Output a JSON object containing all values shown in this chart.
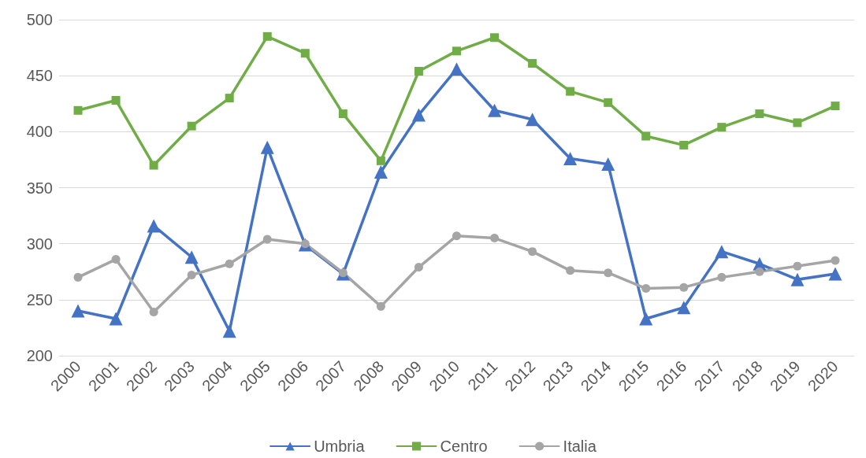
{
  "chart_data": {
    "type": "line",
    "categories": [
      "2000",
      "2001",
      "2002",
      "2003",
      "2004",
      "2005",
      "2006",
      "2007",
      "2008",
      "2009",
      "2010",
      "2011",
      "2012",
      "2013",
      "2014",
      "2015",
      "2016",
      "2017",
      "2018",
      "2019",
      "2020"
    ],
    "series": [
      {
        "name": "Umbria",
        "color": "#4472c4",
        "marker": "triangle",
        "values": [
          240,
          233,
          316,
          288,
          222,
          386,
          299,
          273,
          364,
          415,
          456,
          419,
          411,
          376,
          371,
          233,
          243,
          293,
          282,
          268,
          273
        ]
      },
      {
        "name": "Centro",
        "color": "#70ad47",
        "marker": "square",
        "values": [
          419,
          428,
          370,
          405,
          430,
          485,
          470,
          416,
          374,
          454,
          472,
          484,
          461,
          436,
          426,
          396,
          388,
          404,
          416,
          408,
          423
        ]
      },
      {
        "name": "Italia",
        "color": "#a5a5a5",
        "marker": "circle",
        "values": [
          270,
          286,
          239,
          272,
          282,
          304,
          300,
          274,
          244,
          279,
          307,
          305,
          293,
          276,
          274,
          260,
          261,
          270,
          275,
          280,
          285
        ]
      }
    ],
    "ylim": [
      200,
      500
    ],
    "yticks": [
      200,
      250,
      300,
      350,
      400,
      450,
      500
    ],
    "grid": "y",
    "legend": "bottom",
    "line_style": "solid"
  }
}
